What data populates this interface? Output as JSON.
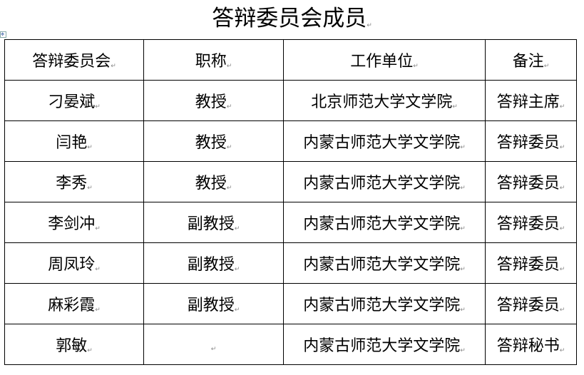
{
  "title": "答辩委员会成员",
  "headers": [
    "答辩委员会",
    "职称",
    "工作单位",
    "备注"
  ],
  "rows": [
    [
      "刁晏斌",
      "教授",
      "北京师范大学文学院",
      "答辩主席"
    ],
    [
      "闫艳",
      "教授",
      "内蒙古师范大学文学院",
      "答辩委员"
    ],
    [
      "李秀",
      "教授",
      "内蒙古师范大学文学院",
      "答辩委员"
    ],
    [
      "李剑冲",
      "副教授",
      "内蒙古师范大学文学院",
      "答辩委员"
    ],
    [
      "周凤玲",
      "副教授",
      "内蒙古师范大学文学院",
      "答辩委员"
    ],
    [
      "麻彩霞",
      "副教授",
      "内蒙古师范大学文学院",
      "答辩委员"
    ],
    [
      "郭敏",
      "",
      "内蒙古师范大学文学院",
      "答辩秘书"
    ]
  ]
}
